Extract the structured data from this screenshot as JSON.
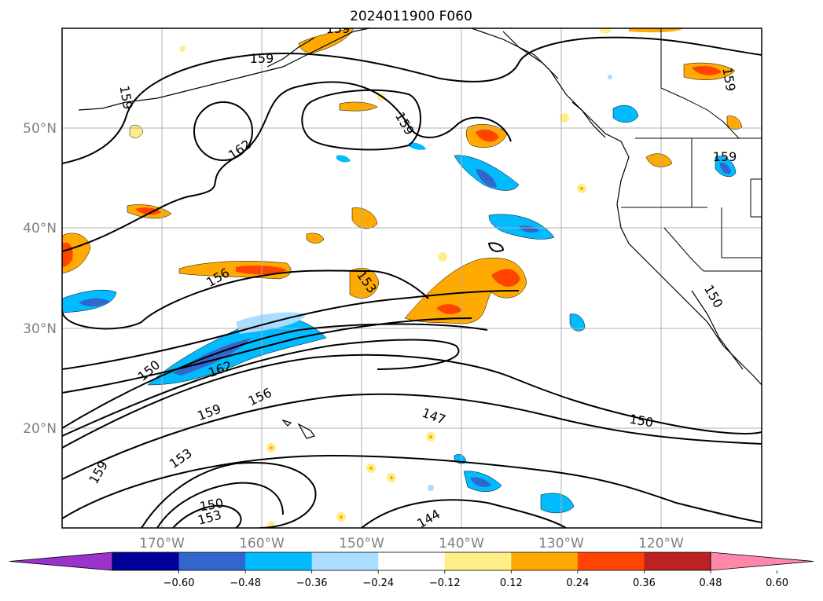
{
  "title": "2024011900 F060",
  "lat_labels": [
    "50°N",
    "40°N",
    "30°N",
    "20°N"
  ],
  "lon_labels": [
    "170°W",
    "160°W",
    "150°W",
    "140°W",
    "130°W",
    "120°W"
  ],
  "colorbar": {
    "ticks": [
      "−0.60",
      "−0.48",
      "−0.36",
      "−0.24",
      "−0.12",
      "0.12",
      "0.24",
      "0.36",
      "0.48",
      "0.60"
    ],
    "colors": [
      "#9933cc",
      "#000099",
      "#3366cc",
      "#00bbff",
      "#aaddff",
      "#ffffff",
      "#ffee88",
      "#ffaa00",
      "#ff4400",
      "#bb2222",
      "#ff88aa"
    ]
  },
  "contour_labels": [
    "159",
    "159",
    "162",
    "159",
    "159",
    "159",
    "156",
    "153",
    "150",
    "162",
    "156",
    "159",
    "147",
    "150",
    "153",
    "159",
    "150",
    "153",
    "144",
    "159"
  ]
}
